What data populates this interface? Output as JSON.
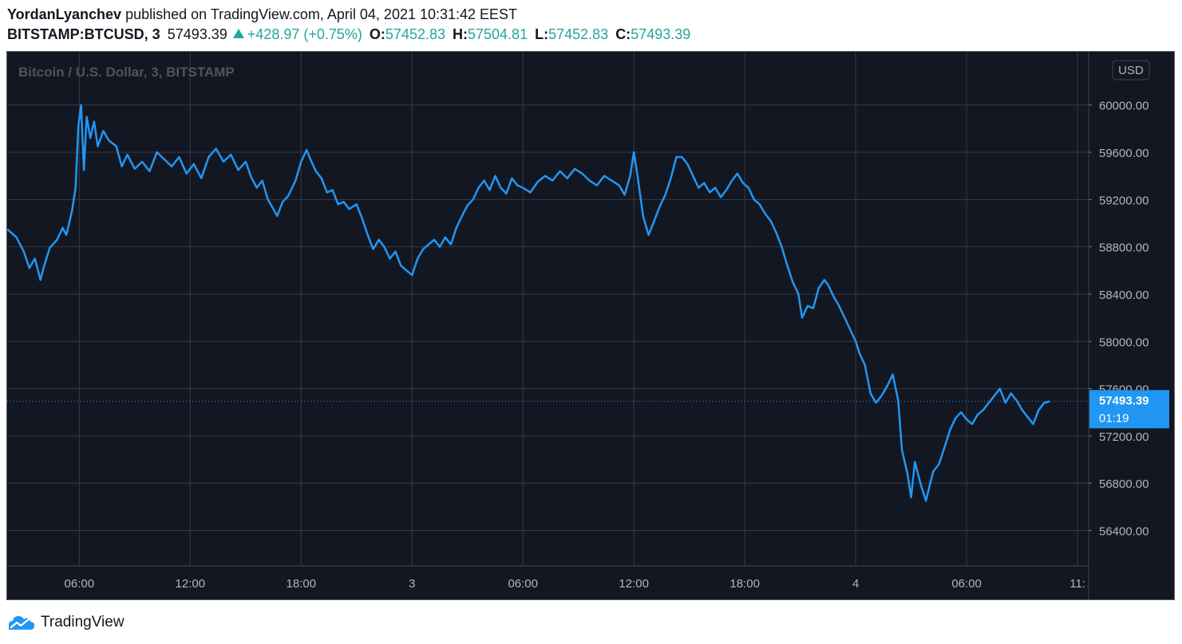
{
  "header": {
    "author": "YordanLyanchev",
    "published_text": "published on TradingView.com, April 04, 2021 10:31:42 EEST",
    "symbol": "BITSTAMP:BTCUSD, 3",
    "last_price": "57493.39",
    "change": "+428.97 (+0.75%)",
    "ohlc": [
      {
        "label": "O:",
        "value": "57452.83"
      },
      {
        "label": "H:",
        "value": "57504.81"
      },
      {
        "label": "L:",
        "value": "57452.83"
      },
      {
        "label": "C:",
        "value": "57493.39"
      }
    ]
  },
  "colors": {
    "background": "#131722",
    "line": "#2196f3",
    "grid": "#363a45",
    "axis_text": "#b2b5be",
    "up": "#26a69a"
  },
  "chart_data": {
    "type": "line",
    "title": "Bitcoin / U.S. Dollar, 3, BITSTAMP",
    "currency_badge": "USD",
    "x_unit": "hours since Apr 2 00:00",
    "y_ticks": [
      60000,
      59600,
      59200,
      58800,
      58400,
      58000,
      57600,
      57200,
      56800,
      56400
    ],
    "y_tick_labels": [
      "60000.00",
      "59600.00",
      "59200.00",
      "58800.00",
      "58400.00",
      "58000.00",
      "57600.00",
      "57200.00",
      "56800.00",
      "56400.00"
    ],
    "ylim": [
      56100,
      60450
    ],
    "x_ticks": [
      {
        "x": 6,
        "label": "06:00"
      },
      {
        "x": 12,
        "label": "12:00"
      },
      {
        "x": 18,
        "label": "18:00"
      },
      {
        "x": 24,
        "label": "3"
      },
      {
        "x": 30,
        "label": "06:00"
      },
      {
        "x": 36,
        "label": "12:00"
      },
      {
        "x": 42,
        "label": "18:00"
      },
      {
        "x": 48,
        "label": "4"
      },
      {
        "x": 54,
        "label": "06:00"
      },
      {
        "x": 60,
        "label": "11:"
      }
    ],
    "xlim": [
      2.1,
      60.6
    ],
    "last_value": 57493.39,
    "last_value_label": "57493.39",
    "countdown": "01:19",
    "series": [
      {
        "points": [
          [
            2.1,
            58950
          ],
          [
            2.6,
            58880
          ],
          [
            3.0,
            58760
          ],
          [
            3.3,
            58620
          ],
          [
            3.6,
            58700
          ],
          [
            3.9,
            58520
          ],
          [
            4.1,
            58640
          ],
          [
            4.4,
            58790
          ],
          [
            4.8,
            58860
          ],
          [
            5.1,
            58960
          ],
          [
            5.3,
            58900
          ],
          [
            5.6,
            59100
          ],
          [
            5.8,
            59300
          ],
          [
            5.95,
            59820
          ],
          [
            6.1,
            60000
          ],
          [
            6.25,
            59450
          ],
          [
            6.4,
            59900
          ],
          [
            6.6,
            59720
          ],
          [
            6.8,
            59860
          ],
          [
            7.0,
            59650
          ],
          [
            7.3,
            59780
          ],
          [
            7.6,
            59700
          ],
          [
            8.0,
            59650
          ],
          [
            8.3,
            59480
          ],
          [
            8.6,
            59580
          ],
          [
            9.0,
            59460
          ],
          [
            9.4,
            59520
          ],
          [
            9.8,
            59440
          ],
          [
            10.2,
            59600
          ],
          [
            10.6,
            59540
          ],
          [
            11.0,
            59480
          ],
          [
            11.4,
            59560
          ],
          [
            11.8,
            59420
          ],
          [
            12.2,
            59500
          ],
          [
            12.6,
            59380
          ],
          [
            13.0,
            59560
          ],
          [
            13.4,
            59630
          ],
          [
            13.8,
            59520
          ],
          [
            14.2,
            59580
          ],
          [
            14.6,
            59450
          ],
          [
            15.0,
            59520
          ],
          [
            15.3,
            59390
          ],
          [
            15.6,
            59300
          ],
          [
            15.9,
            59360
          ],
          [
            16.2,
            59200
          ],
          [
            16.5,
            59120
          ],
          [
            16.7,
            59060
          ],
          [
            17.0,
            59180
          ],
          [
            17.3,
            59230
          ],
          [
            17.7,
            59360
          ],
          [
            18.0,
            59520
          ],
          [
            18.3,
            59620
          ],
          [
            18.5,
            59540
          ],
          [
            18.8,
            59440
          ],
          [
            19.1,
            59380
          ],
          [
            19.4,
            59260
          ],
          [
            19.7,
            59280
          ],
          [
            20.0,
            59160
          ],
          [
            20.3,
            59180
          ],
          [
            20.6,
            59120
          ],
          [
            21.0,
            59160
          ],
          [
            21.3,
            59040
          ],
          [
            21.6,
            58900
          ],
          [
            21.9,
            58780
          ],
          [
            22.2,
            58860
          ],
          [
            22.5,
            58800
          ],
          [
            22.8,
            58700
          ],
          [
            23.1,
            58760
          ],
          [
            23.4,
            58640
          ],
          [
            23.7,
            58600
          ],
          [
            24.0,
            58560
          ],
          [
            24.3,
            58700
          ],
          [
            24.6,
            58780
          ],
          [
            24.9,
            58820
          ],
          [
            25.2,
            58860
          ],
          [
            25.5,
            58800
          ],
          [
            25.8,
            58880
          ],
          [
            26.1,
            58820
          ],
          [
            26.4,
            58960
          ],
          [
            26.7,
            59060
          ],
          [
            27.0,
            59150
          ],
          [
            27.3,
            59200
          ],
          [
            27.6,
            59300
          ],
          [
            27.9,
            59360
          ],
          [
            28.2,
            59280
          ],
          [
            28.5,
            59400
          ],
          [
            28.8,
            59300
          ],
          [
            29.1,
            59250
          ],
          [
            29.4,
            59380
          ],
          [
            29.7,
            59320
          ],
          [
            30.0,
            59300
          ],
          [
            30.4,
            59260
          ],
          [
            30.8,
            59350
          ],
          [
            31.2,
            59400
          ],
          [
            31.6,
            59360
          ],
          [
            32.0,
            59440
          ],
          [
            32.4,
            59380
          ],
          [
            32.8,
            59460
          ],
          [
            33.2,
            59420
          ],
          [
            33.6,
            59360
          ],
          [
            34.0,
            59320
          ],
          [
            34.4,
            59400
          ],
          [
            34.8,
            59360
          ],
          [
            35.2,
            59320
          ],
          [
            35.5,
            59240
          ],
          [
            35.8,
            59400
          ],
          [
            36.0,
            59600
          ],
          [
            36.2,
            59400
          ],
          [
            36.5,
            59060
          ],
          [
            36.8,
            58900
          ],
          [
            37.1,
            59020
          ],
          [
            37.4,
            59140
          ],
          [
            37.7,
            59240
          ],
          [
            38.0,
            59380
          ],
          [
            38.3,
            59560
          ],
          [
            38.6,
            59560
          ],
          [
            38.9,
            59500
          ],
          [
            39.2,
            59400
          ],
          [
            39.5,
            59300
          ],
          [
            39.8,
            59340
          ],
          [
            40.1,
            59260
          ],
          [
            40.4,
            59300
          ],
          [
            40.7,
            59220
          ],
          [
            41.0,
            59280
          ],
          [
            41.3,
            59360
          ],
          [
            41.6,
            59420
          ],
          [
            41.9,
            59340
          ],
          [
            42.2,
            59300
          ],
          [
            42.5,
            59200
          ],
          [
            42.8,
            59160
          ],
          [
            43.1,
            59080
          ],
          [
            43.4,
            59020
          ],
          [
            43.7,
            58920
          ],
          [
            44.0,
            58800
          ],
          [
            44.3,
            58640
          ],
          [
            44.6,
            58500
          ],
          [
            44.9,
            58400
          ],
          [
            45.1,
            58200
          ],
          [
            45.4,
            58300
          ],
          [
            45.7,
            58280
          ],
          [
            46.0,
            58450
          ],
          [
            46.3,
            58520
          ],
          [
            46.5,
            58480
          ],
          [
            46.8,
            58380
          ],
          [
            47.1,
            58300
          ],
          [
            47.4,
            58200
          ],
          [
            47.7,
            58100
          ],
          [
            48.0,
            58000
          ],
          [
            48.2,
            57900
          ],
          [
            48.5,
            57800
          ],
          [
            48.8,
            57560
          ],
          [
            49.1,
            57480
          ],
          [
            49.4,
            57540
          ],
          [
            49.7,
            57620
          ],
          [
            50.0,
            57720
          ],
          [
            50.3,
            57500
          ],
          [
            50.5,
            57080
          ],
          [
            50.8,
            56880
          ],
          [
            51.0,
            56680
          ],
          [
            51.2,
            56980
          ],
          [
            51.5,
            56800
          ],
          [
            51.8,
            56650
          ],
          [
            52.0,
            56780
          ],
          [
            52.2,
            56900
          ],
          [
            52.5,
            56960
          ],
          [
            52.8,
            57100
          ],
          [
            53.1,
            57250
          ],
          [
            53.4,
            57350
          ],
          [
            53.7,
            57400
          ],
          [
            54.0,
            57340
          ],
          [
            54.3,
            57300
          ],
          [
            54.6,
            57380
          ],
          [
            54.9,
            57420
          ],
          [
            55.2,
            57480
          ],
          [
            55.5,
            57540
          ],
          [
            55.8,
            57600
          ],
          [
            56.1,
            57480
          ],
          [
            56.4,
            57560
          ],
          [
            56.7,
            57500
          ],
          [
            57.0,
            57420
          ],
          [
            57.3,
            57360
          ],
          [
            57.6,
            57300
          ],
          [
            57.9,
            57420
          ],
          [
            58.2,
            57480
          ],
          [
            58.5,
            57493.39
          ]
        ]
      }
    ]
  }
}
